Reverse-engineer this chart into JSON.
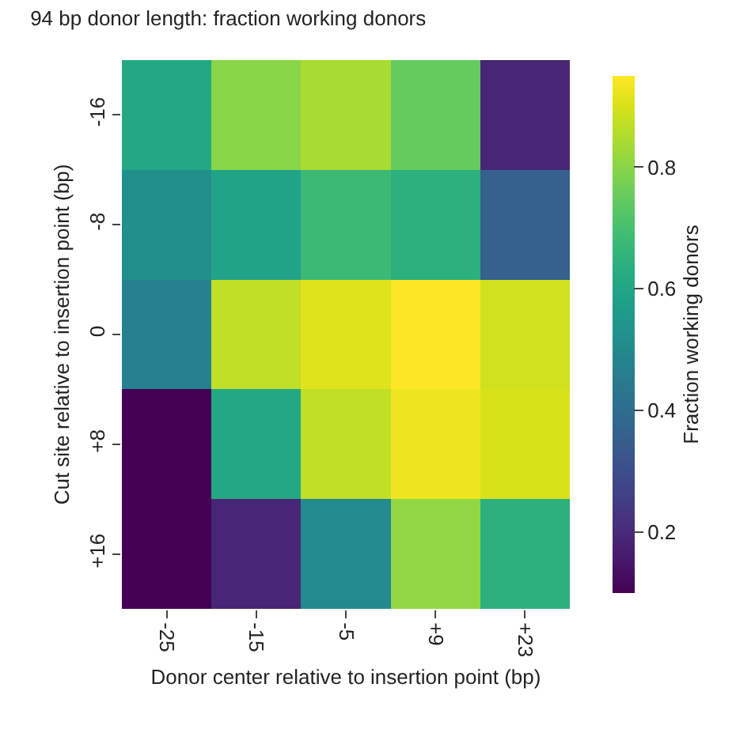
{
  "chart_data": {
    "type": "heatmap",
    "title": "94 bp donor length: fraction working donors",
    "xlabel": "Donor center relative to insertion point (bp)",
    "ylabel": "Cut site relative to insertion point (bp)",
    "clabel": "Fraction working donors",
    "categories": [
      "-25",
      "-15",
      "-5",
      "+9",
      "+23"
    ],
    "y_categories": [
      "-16",
      "-8",
      "0",
      "+8",
      "+16"
    ],
    "cells": [
      [
        0.61,
        0.8,
        0.84,
        0.75,
        0.19
      ],
      [
        0.52,
        0.59,
        0.68,
        0.64,
        0.36
      ],
      [
        0.47,
        0.87,
        0.91,
        0.95,
        0.89
      ],
      [
        0.1,
        0.61,
        0.87,
        0.93,
        0.9
      ],
      [
        0.1,
        0.19,
        0.5,
        0.81,
        0.64
      ]
    ],
    "clim": [
      0.1,
      0.95
    ],
    "cticks": [
      0.2,
      0.4,
      0.6,
      0.8
    ]
  }
}
